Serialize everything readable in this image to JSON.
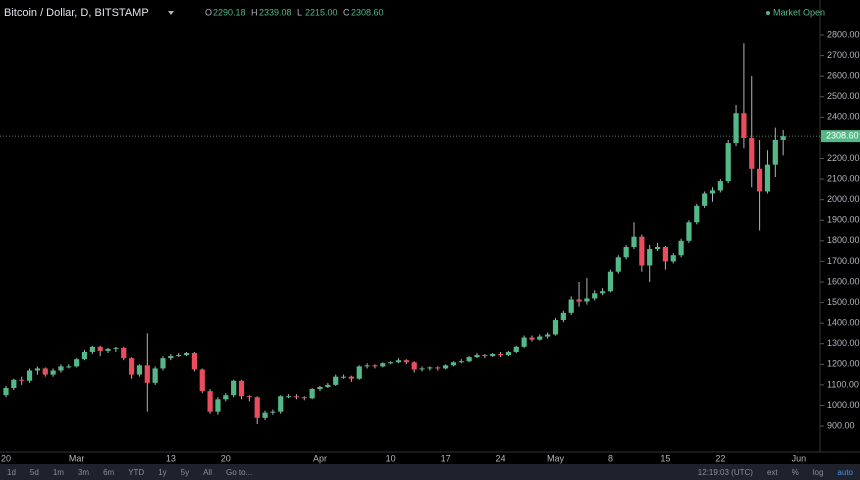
{
  "header": {
    "symbol": "Bitcoin / Dollar, D, BITSTAMP",
    "ohlc": [
      {
        "key": "O",
        "value": "2290.18"
      },
      {
        "key": "H",
        "value": "2339.08"
      },
      {
        "key": "L",
        "value": "2215.00"
      },
      {
        "key": "C",
        "value": "2308.60"
      }
    ],
    "status": "Market Open"
  },
  "toolbar": {
    "ranges": [
      "1d",
      "5d",
      "1m",
      "3m",
      "6m",
      "YTD",
      "1y",
      "5y",
      "All",
      "Go to..."
    ],
    "clock": "12:19:03 (UTC)",
    "options": [
      "ext",
      "%",
      "log",
      "auto"
    ]
  },
  "chart_data": {
    "type": "candlestick",
    "up_color": "#53b987",
    "down_color": "#eb4d5c",
    "grid": false,
    "ylim": [
      774,
      2970
    ],
    "yticks": [
      {
        "value": 900,
        "label": "900.00"
      },
      {
        "value": 1000,
        "label": "1000.00"
      },
      {
        "value": 1100,
        "label": "1100.00"
      },
      {
        "value": 1200,
        "label": "1200.00"
      },
      {
        "value": 1300,
        "label": "1300.00"
      },
      {
        "value": 1400,
        "label": "1400.00"
      },
      {
        "value": 1500,
        "label": "1500.00"
      },
      {
        "value": 1600,
        "label": "1600.00"
      },
      {
        "value": 1700,
        "label": "1700.00"
      },
      {
        "value": 1800,
        "label": "1800.00"
      },
      {
        "value": 1900,
        "label": "1900.00"
      },
      {
        "value": 2000,
        "label": "2000.00"
      },
      {
        "value": 2100,
        "label": "2100.00"
      },
      {
        "value": 2200,
        "label": "2200.00"
      },
      {
        "value": 2300,
        "label": "2300.00"
      },
      {
        "value": 2400,
        "label": "2400.00"
      },
      {
        "value": 2500,
        "label": "2500.00"
      },
      {
        "value": 2600,
        "label": "2600.00"
      },
      {
        "value": 2700,
        "label": "2700.00"
      },
      {
        "value": 2800,
        "label": "2800.00"
      }
    ],
    "last_price": {
      "value": 2308.6,
      "label": "2308.60"
    },
    "categories": [
      "20",
      null,
      null,
      null,
      null,
      null,
      null,
      null,
      null,
      "Mar",
      null,
      null,
      null,
      null,
      null,
      null,
      null,
      null,
      null,
      null,
      null,
      "13",
      null,
      null,
      null,
      null,
      null,
      null,
      "20",
      null,
      null,
      null,
      null,
      null,
      null,
      null,
      null,
      null,
      null,
      null,
      "Apr",
      null,
      null,
      null,
      null,
      null,
      null,
      null,
      null,
      "10",
      null,
      null,
      null,
      null,
      null,
      null,
      "17",
      null,
      null,
      null,
      null,
      null,
      null,
      "24",
      null,
      null,
      null,
      null,
      null,
      null,
      "May",
      null,
      null,
      null,
      null,
      null,
      null,
      "8",
      null,
      null,
      null,
      null,
      null,
      null,
      "15",
      null,
      null,
      null,
      null,
      null,
      null,
      "22",
      null,
      null,
      null,
      null,
      null,
      null,
      null,
      null,
      null,
      "Jun"
    ],
    "open": [
      1050,
      1085,
      1125,
      1120,
      1170,
      1180,
      1150,
      1170,
      1190,
      1190,
      1225,
      1260,
      1285,
      1265,
      1275,
      1280,
      1230,
      1150,
      1195,
      1110,
      1180,
      1230,
      1240,
      1245,
      1255,
      1175,
      1070,
      970,
      1030,
      1050,
      1120,
      1045,
      1040,
      940,
      965,
      970,
      1045,
      1045,
      1040,
      1035,
      1080,
      1090,
      1100,
      1140,
      1140,
      1130,
      1190,
      1195,
      1190,
      1205,
      1210,
      1220,
      1210,
      1175,
      1180,
      1185,
      1180,
      1195,
      1210,
      1215,
      1235,
      1245,
      1240,
      1250,
      1245,
      1260,
      1285,
      1330,
      1320,
      1335,
      1345,
      1415,
      1450,
      1515,
      1505,
      1520,
      1545,
      1555,
      1650,
      1720,
      1770,
      1820,
      1680,
      1760,
      1770,
      1700,
      1730,
      1800,
      1890,
      1970,
      2030,
      2045,
      2090,
      2275,
      2420,
      2300,
      2150,
      2040,
      2170,
      2290.18,
      null,
      null
    ],
    "high": [
      1095,
      1130,
      1140,
      1180,
      1190,
      1185,
      1180,
      1200,
      1200,
      1230,
      1270,
      1290,
      1290,
      1280,
      1285,
      1285,
      1235,
      1200,
      1350,
      1190,
      1240,
      1250,
      1255,
      1260,
      1260,
      1180,
      1080,
      1040,
      1060,
      1125,
      1125,
      1050,
      1045,
      975,
      980,
      1050,
      1055,
      1055,
      1045,
      1085,
      1095,
      1110,
      1150,
      1150,
      1145,
      1195,
      1205,
      1200,
      1210,
      1215,
      1230,
      1225,
      1215,
      1190,
      1190,
      1190,
      1200,
      1215,
      1225,
      1240,
      1255,
      1250,
      1255,
      1260,
      1265,
      1290,
      1340,
      1340,
      1345,
      1355,
      1425,
      1460,
      1530,
      1600,
      1620,
      1560,
      1570,
      1660,
      1730,
      1780,
      1890,
      1830,
      1780,
      1790,
      1775,
      1740,
      1810,
      1900,
      1980,
      2040,
      2060,
      2100,
      2290,
      2460,
      2760,
      2600,
      2290,
      2240,
      2350,
      2339.08,
      null,
      null
    ],
    "low": [
      1040,
      1075,
      1100,
      1110,
      1150,
      1140,
      1140,
      1160,
      1180,
      1185,
      1220,
      1250,
      1240,
      1255,
      1260,
      1220,
      1130,
      1140,
      970,
      1100,
      1170,
      1220,
      1235,
      1240,
      1165,
      1060,
      960,
      955,
      1020,
      1040,
      1030,
      1020,
      910,
      930,
      955,
      960,
      1035,
      1030,
      1025,
      1030,
      1070,
      1085,
      1095,
      1130,
      1115,
      1125,
      1180,
      1180,
      1185,
      1200,
      1205,
      1200,
      1160,
      1165,
      1170,
      1170,
      1175,
      1190,
      1205,
      1210,
      1230,
      1230,
      1235,
      1235,
      1240,
      1255,
      1280,
      1310,
      1315,
      1325,
      1340,
      1405,
      1440,
      1480,
      1490,
      1510,
      1535,
      1550,
      1640,
      1710,
      1760,
      1650,
      1600,
      1750,
      1660,
      1690,
      1720,
      1790,
      1880,
      1960,
      1990,
      2035,
      2080,
      2260,
      2250,
      2060,
      1850,
      2030,
      2110,
      2215,
      null,
      null
    ],
    "close": [
      1085,
      1125,
      1120,
      1170,
      1180,
      1150,
      1170,
      1190,
      1190,
      1225,
      1260,
      1285,
      1265,
      1275,
      1280,
      1230,
      1150,
      1195,
      1110,
      1180,
      1230,
      1240,
      1245,
      1255,
      1175,
      1070,
      970,
      1030,
      1050,
      1120,
      1045,
      1040,
      940,
      965,
      970,
      1045,
      1045,
      1040,
      1035,
      1080,
      1090,
      1100,
      1140,
      1140,
      1130,
      1190,
      1195,
      1190,
      1205,
      1210,
      1220,
      1210,
      1175,
      1180,
      1185,
      1180,
      1195,
      1210,
      1215,
      1235,
      1245,
      1240,
      1250,
      1245,
      1260,
      1285,
      1330,
      1320,
      1335,
      1345,
      1415,
      1450,
      1515,
      1505,
      1520,
      1545,
      1555,
      1650,
      1720,
      1770,
      1820,
      1680,
      1760,
      1770,
      1700,
      1730,
      1800,
      1890,
      1970,
      2030,
      2045,
      2090,
      2275,
      2420,
      2300,
      2150,
      2040,
      2170,
      2290.18,
      2308.6,
      null,
      null
    ]
  }
}
